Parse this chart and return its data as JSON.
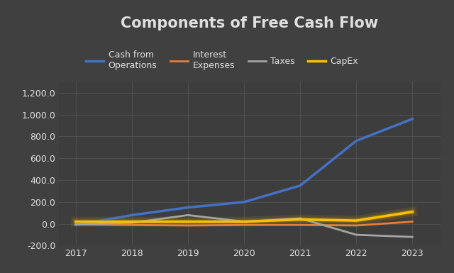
{
  "title": "Components of Free Cash Flow",
  "years": [
    2017,
    2018,
    2019,
    2020,
    2021,
    2022,
    2023
  ],
  "series": {
    "Cash from\nOperations": {
      "values": [
        -10,
        80,
        150,
        200,
        350,
        760,
        960
      ],
      "color": "#4472C4",
      "linewidth": 2.5
    },
    "Interest\nExpenses": {
      "values": [
        -5,
        -10,
        -15,
        -10,
        -10,
        -15,
        20
      ],
      "color": "#ED7D31",
      "linewidth": 2.0
    },
    "Taxes": {
      "values": [
        -5,
        10,
        80,
        20,
        50,
        -100,
        -120
      ],
      "color": "#A5A5A5",
      "linewidth": 2.0
    },
    "CapEx": {
      "values": [
        20,
        20,
        20,
        20,
        40,
        30,
        110
      ],
      "color": "#FFC000",
      "linewidth": 2.5
    }
  },
  "ylim": [
    -200,
    1300
  ],
  "yticks": [
    -200,
    0,
    200,
    400,
    600,
    800,
    1000,
    1200
  ],
  "background_color": "#404040",
  "plot_bg_color": "#3d3d3d",
  "grid_color": "#595959",
  "text_color": "#e0e0e0",
  "title_fontsize": 15,
  "tick_fontsize": 9,
  "legend_fontsize": 9
}
